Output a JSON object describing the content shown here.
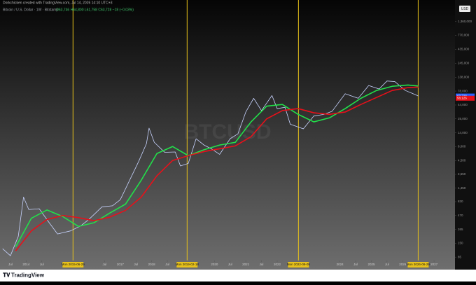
{
  "chart_data": {
    "type": "line",
    "title": "Dorkchicken created with TradingView.com, Jul 14, 2026 14:10 UTC+3",
    "subtitle": "Bitcoin / U.S. Dollar · 1W · Bitstamp",
    "ohlc": "O63,746 H64,800 L61,758 C63,728 −18 (−0.03%)",
    "watermark": "BTCUSD",
    "currency": "USD",
    "brand": "TradingView",
    "log_scale": true,
    "xlim": [
      "2013-03",
      "2027-09"
    ],
    "ylim": [
      74,
      2330000
    ],
    "xticks": [
      {
        "value": "2013-07",
        "label": "Jul"
      },
      {
        "value": "2014-01",
        "label": "2014"
      },
      {
        "value": "2014-07",
        "label": "Jul"
      },
      {
        "value": "2016-07",
        "label": "Jul"
      },
      {
        "value": "2017-01",
        "label": "2017"
      },
      {
        "value": "2017-07",
        "label": "Jul"
      },
      {
        "value": "2018-01",
        "label": "2018"
      },
      {
        "value": "2018-07",
        "label": "Jul"
      },
      {
        "value": "2020-01",
        "label": "2020"
      },
      {
        "value": "2020-07",
        "label": "Jul"
      },
      {
        "value": "2021-01",
        "label": "2021"
      },
      {
        "value": "2021-07",
        "label": "Jul"
      },
      {
        "value": "2022-01",
        "label": "2022"
      },
      {
        "value": "2024-01",
        "label": "2024"
      },
      {
        "value": "2024-07",
        "label": "Jul"
      },
      {
        "value": "2025-01",
        "label": "2025"
      },
      {
        "value": "2025-07",
        "label": "Jul"
      },
      {
        "value": "2026-01",
        "label": "2026"
      },
      {
        "value": "2027-01",
        "label": "2027"
      }
    ],
    "yticks": [
      85,
      150,
      265,
      470,
      830,
      {
        "value": 1450,
        "label": "1,450"
      },
      {
        "value": 2550,
        "label": "2,550"
      },
      {
        "value": 4500,
        "label": "4,500"
      },
      {
        "value": 8000,
        "label": "8,000"
      },
      {
        "value": 14000,
        "label": "14,000"
      },
      {
        "value": 25000,
        "label": "25,000"
      },
      {
        "value": 44000,
        "label": "44,000"
      },
      {
        "value": 78000,
        "label": "78,000"
      },
      {
        "value": 138000,
        "label": "138,000"
      },
      {
        "value": 245000,
        "label": "245,000"
      },
      {
        "value": 435000,
        "label": "435,000"
      },
      {
        "value": 770000,
        "label": "770,000"
      },
      {
        "value": 1360000,
        "label": "1,360,000"
      }
    ],
    "annotations": [
      {
        "value": "2015-06-29",
        "label": "Mon 2015-06-29"
      },
      {
        "value": "2019-02-18",
        "label": "Mon 2019-02-18"
      },
      {
        "value": "2022-09-05",
        "label": "Mon 2022-09-05"
      },
      {
        "value": "2026-06-29",
        "label": "Mon 2026-06-29"
      }
    ],
    "annotation_color": "#e8c21a",
    "price_labels": [
      {
        "value": 63728,
        "label": "63,728"
      },
      {
        "value": 58126,
        "label": "58,126"
      }
    ],
    "series": [
      {
        "color": "#c8d4ff",
        "x": [
          "2013-04",
          "2013-07",
          "2013-10",
          "2013-12",
          "2014-02",
          "2014-06",
          "2014-10",
          "2015-01",
          "2015-06",
          "2015-10",
          "2016-01",
          "2016-06",
          "2016-10",
          "2017-01",
          "2017-05",
          "2017-08",
          "2017-11",
          "2017-12",
          "2018-02",
          "2018-06",
          "2018-10",
          "2018-12",
          "2019-03",
          "2019-06",
          "2019-09",
          "2019-12",
          "2020-03",
          "2020-07",
          "2020-10",
          "2021-01",
          "2021-04",
          "2021-07",
          "2021-11",
          "2022-01",
          "2022-04",
          "2022-06",
          "2022-11",
          "2023-03",
          "2023-07",
          "2023-10",
          "2024-03",
          "2024-08",
          "2024-12",
          "2025-04",
          "2025-07",
          "2025-10",
          "2026-02",
          "2026-05",
          "2026-07"
        ],
        "values": [
          120,
          90,
          200,
          1000,
          600,
          620,
          340,
          220,
          250,
          310,
          400,
          670,
          700,
          900,
          2200,
          4300,
          9000,
          17000,
          9500,
          6300,
          6400,
          3600,
          4000,
          11000,
          8500,
          7200,
          5800,
          11000,
          13500,
          33000,
          58000,
          35000,
          65000,
          38000,
          40000,
          20000,
          16500,
          28000,
          30000,
          34000,
          70000,
          58000,
          98000,
          85000,
          118000,
          115000,
          80000,
          70000,
          63728
        ]
      },
      {
        "color": "#22e04a",
        "x": [
          "2013-09",
          "2014-03",
          "2014-09",
          "2015-03",
          "2015-09",
          "2016-03",
          "2016-09",
          "2017-03",
          "2017-09",
          "2018-03",
          "2018-09",
          "2019-03",
          "2019-09",
          "2020-03",
          "2020-09",
          "2021-03",
          "2021-09",
          "2022-03",
          "2022-09",
          "2023-03",
          "2023-09",
          "2024-03",
          "2024-09",
          "2025-03",
          "2025-09",
          "2026-03",
          "2026-07"
        ],
        "values": [
          130,
          420,
          590,
          450,
          300,
          350,
          520,
          750,
          2000,
          6000,
          8000,
          5500,
          7000,
          8500,
          9500,
          22000,
          42000,
          45000,
          30000,
          22000,
          26000,
          38000,
          58000,
          80000,
          95000,
          100000,
          96000
        ]
      },
      {
        "color": "#e8101a",
        "x": [
          "2013-09",
          "2014-03",
          "2014-09",
          "2015-03",
          "2015-09",
          "2016-03",
          "2016-09",
          "2017-03",
          "2017-09",
          "2018-03",
          "2018-09",
          "2019-03",
          "2019-09",
          "2020-03",
          "2020-09",
          "2021-03",
          "2021-09",
          "2022-03",
          "2022-09",
          "2023-03",
          "2023-09",
          "2024-03",
          "2024-09",
          "2025-03",
          "2025-09",
          "2026-03",
          "2026-07"
        ],
        "values": [
          110,
          250,
          400,
          470,
          430,
          380,
          440,
          580,
          1000,
          2400,
          4500,
          5500,
          6500,
          7300,
          8200,
          12000,
          25000,
          35000,
          38000,
          32000,
          30000,
          33000,
          45000,
          60000,
          80000,
          90000,
          92000
        ]
      }
    ]
  }
}
